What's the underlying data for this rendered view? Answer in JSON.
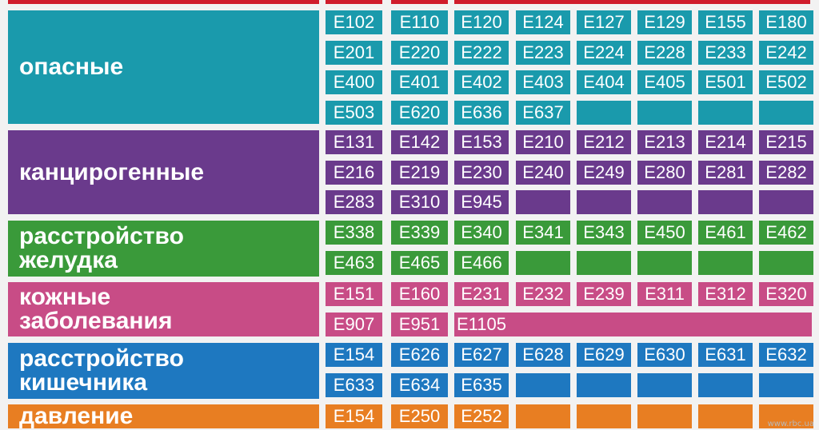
{
  "colors": {
    "top_bar": "#d01c2c",
    "dangerous": "#1a9aac",
    "carcinogenic": "#6a3a8c",
    "stomach": "#3a9a3a",
    "skin": "#c84c86",
    "intestine": "#1e78c0",
    "pressure": "#e87e22"
  },
  "categories": [
    {
      "key": "dangerous",
      "lines": [
        "опасные"
      ],
      "rows": [
        [
          "E102",
          "E110",
          "E120",
          "E124",
          "E127",
          "E129",
          "E155",
          "E180"
        ],
        [
          "E201",
          "E220",
          "E222",
          "E223",
          "E224",
          "E228",
          "E233",
          "E242"
        ],
        [
          "E400",
          "E401",
          "E402",
          "E403",
          "E404",
          "E405",
          "E501",
          "E502"
        ],
        [
          "E503",
          "E620",
          "E636",
          "E637",
          "",
          "",
          "",
          ""
        ]
      ]
    },
    {
      "key": "carcinogenic",
      "lines": [
        "канцирогенные"
      ],
      "rows": [
        [
          "E131",
          "E142",
          "E153",
          "E210",
          "E212",
          "E213",
          "E214",
          "E215"
        ],
        [
          "E216",
          "E219",
          "E230",
          "E240",
          "E249",
          "E280",
          "E281",
          "E282"
        ],
        [
          "E283",
          "E310",
          "E945",
          "",
          "",
          "",
          "",
          ""
        ]
      ]
    },
    {
      "key": "stomach",
      "lines": [
        "расстройство",
        "желудка"
      ],
      "rows": [
        [
          "E338",
          "E339",
          "E340",
          "E341",
          "E343",
          "E450",
          "E461",
          "E462"
        ],
        [
          "E463",
          "E465",
          "E466",
          "",
          "",
          "",
          "",
          ""
        ]
      ]
    },
    {
      "key": "skin",
      "lines": [
        "кожные",
        "заболевания"
      ],
      "rows": [
        [
          "E151",
          "E160",
          "E231",
          "E232",
          "E239",
          "E311",
          "E312",
          "E320"
        ],
        [
          "E907",
          "E951",
          "E1105"
        ]
      ]
    },
    {
      "key": "intestine",
      "lines": [
        "расстройство",
        "кишечника"
      ],
      "rows": [
        [
          "E154",
          "E626",
          "E627",
          "E628",
          "E629",
          "E630",
          "E631",
          "E632"
        ],
        [
          "E633",
          "E634",
          "E635",
          "",
          "",
          "",
          "",
          ""
        ]
      ]
    },
    {
      "key": "pressure",
      "lines": [
        "давление"
      ],
      "rows": [
        [
          "E154",
          "E250",
          "E252",
          "",
          "",
          "",
          "",
          ""
        ]
      ]
    }
  ],
  "watermark": "www.rbc.ua"
}
